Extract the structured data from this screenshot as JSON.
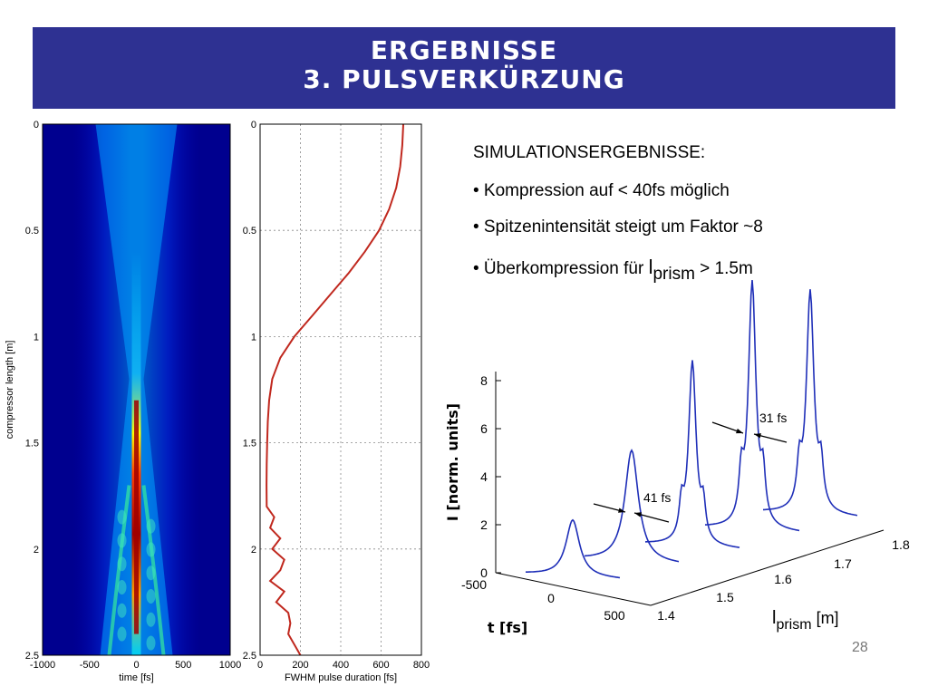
{
  "header": {
    "title_line1": "ERGEBNISSE",
    "title_line2": "3. PULSVERKÜRZUNG"
  },
  "summary": {
    "heading": "SIMULATIONSERGEBNISSE:",
    "bullets": [
      "• Kompression auf < 40fs möglich",
      "• Spitzenintensität steigt um Faktor ~8"
    ],
    "bullet3_prefix": "• Überkompression für ",
    "bullet3_symbol": "l",
    "bullet3_sub": "prism",
    "bullet3_suffix": " > 1.5m"
  },
  "page_number": "28",
  "chart_data": [
    {
      "type": "heatmap",
      "xlabel": "time [fs]",
      "ylabel": "compressor length [m]",
      "xlim": [
        -1000,
        1000
      ],
      "ylim": [
        0,
        2.5
      ],
      "y_inverted": true,
      "x_ticks": [
        "-1000",
        "-500",
        "0",
        "500",
        "1000"
      ],
      "y_ticks": [
        "0",
        "0.5",
        "1",
        "1.5",
        "2",
        "2.5"
      ],
      "colormap": [
        "#00008f",
        "#0000ff",
        "#0080ff",
        "#00ffff",
        "#80ff80",
        "#ffff00",
        "#ff8000",
        "#ff0000",
        "#800000"
      ],
      "peak_region": {
        "time_fs": 0,
        "compressor_length_m": [
          1.3,
          2.4
        ]
      }
    },
    {
      "type": "line",
      "xlabel": "FWHM pulse duration [fs]",
      "ylabel": "",
      "xlim": [
        0,
        800
      ],
      "ylim": [
        0,
        2.5
      ],
      "y_inverted": true,
      "grid": true,
      "x_ticks": [
        "0",
        "200",
        "400",
        "600",
        "800"
      ],
      "y_ticks": [
        "0",
        "0.5",
        "1",
        "1.5",
        "2",
        "2.5"
      ],
      "line_color": "#c0281e",
      "series": [
        {
          "length_m": [
            0,
            0.1,
            0.2,
            0.3,
            0.4,
            0.5,
            0.6,
            0.7,
            0.8,
            0.9,
            1.0,
            1.1,
            1.2,
            1.3,
            1.4,
            1.5,
            1.6,
            1.7,
            1.8,
            1.85,
            1.9,
            1.95,
            2.0,
            2.05,
            2.1,
            2.15,
            2.2,
            2.25,
            2.3,
            2.35,
            2.4,
            2.45,
            2.5
          ],
          "fwhm_fs": [
            710,
            705,
            695,
            675,
            640,
            590,
            520,
            440,
            350,
            260,
            170,
            100,
            60,
            45,
            38,
            35,
            33,
            32,
            33,
            70,
            50,
            100,
            60,
            120,
            100,
            50,
            120,
            80,
            140,
            150,
            140,
            170,
            200
          ]
        }
      ]
    },
    {
      "type": "line",
      "subtype": "3d-waterfall",
      "xlabel": "t [fs]",
      "ylabel": "I [norm. units]",
      "zlabel_symbol": "l",
      "zlabel_sub": "prism",
      "zlabel_unit": " [m]",
      "t_ticks": [
        "-500",
        "0",
        "500"
      ],
      "prism_ticks": [
        "1.4",
        "1.5",
        "1.6",
        "1.7",
        "1.8"
      ],
      "intensity_ticks": [
        "0",
        "2",
        "4",
        "6",
        "8"
      ],
      "line_color": "#1f2fb8",
      "series": [
        {
          "prism_m": 1.4,
          "peak": 2.35
        },
        {
          "prism_m": 1.5,
          "peak": 4.65
        },
        {
          "prism_m": 1.6,
          "peak": 7.6
        },
        {
          "prism_m": 1.7,
          "peak": 10.2
        },
        {
          "prism_m": 1.8,
          "peak": 9.2
        }
      ],
      "annotations": [
        "41 fs",
        "31 fs"
      ]
    }
  ]
}
